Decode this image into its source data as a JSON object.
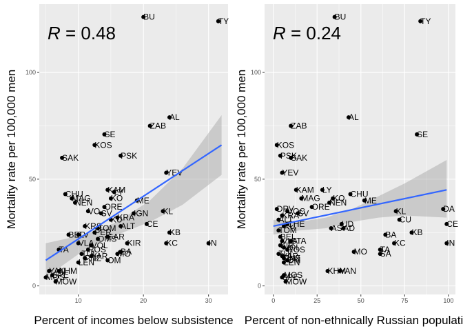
{
  "colors": {
    "panel": "#ebebeb",
    "grid": "#ffffff",
    "point": "#000000",
    "fit": "#3366ff",
    "ribbon": "#999999"
  },
  "chart_data": [
    {
      "type": "scatter",
      "r_var": "R",
      "r_value": "= 0.48",
      "xlabel": "Percent of incomes below subsistence",
      "ylabel": "Mortality rate per 100,000 men",
      "xlim": [
        4,
        33
      ],
      "ylim": [
        -4,
        132
      ],
      "xticks": [
        10,
        20,
        30
      ],
      "yticks": [
        0,
        50,
        100
      ],
      "fit": {
        "x": [
          5,
          32
        ],
        "y": [
          12,
          66
        ]
      },
      "ribbon": {
        "x": [
          5,
          11,
          16,
          21,
          26,
          32
        ],
        "upper": [
          20,
          24,
          30,
          40,
          55,
          80
        ],
        "lower": [
          4,
          17,
          24,
          30,
          38,
          52
        ]
      },
      "points": [
        {
          "label": "BU",
          "x": 20,
          "y": 126
        },
        {
          "label": "TY",
          "x": 31.5,
          "y": 124
        },
        {
          "label": "AL",
          "x": 24,
          "y": 79
        },
        {
          "label": "ZAB",
          "x": 21,
          "y": 75
        },
        {
          "label": "SE",
          "x": 14,
          "y": 71
        },
        {
          "label": "KOS",
          "x": 12.5,
          "y": 66
        },
        {
          "label": "PSK",
          "x": 16.5,
          "y": 61
        },
        {
          "label": "SAK",
          "x": 7.5,
          "y": 60
        },
        {
          "label": "YEV",
          "x": 23.5,
          "y": 53
        },
        {
          "label": "KAM",
          "x": 14.5,
          "y": 45
        },
        {
          "label": "CHU",
          "x": 8,
          "y": 43
        },
        {
          "label": "LY",
          "x": 15.5,
          "y": 44
        },
        {
          "label": "KO",
          "x": 15,
          "y": 41
        },
        {
          "label": "MAG",
          "x": 9,
          "y": 41
        },
        {
          "label": "ME",
          "x": 19,
          "y": 40
        },
        {
          "label": "NEN",
          "x": 9.5,
          "y": 39
        },
        {
          "label": "ORE",
          "x": 14,
          "y": 37
        },
        {
          "label": "VO",
          "x": 11.5,
          "y": 35
        },
        {
          "label": "SV",
          "x": 13.5,
          "y": 34
        },
        {
          "label": "KL",
          "x": 23,
          "y": 35
        },
        {
          "label": "IGN",
          "x": 18.5,
          "y": 34
        },
        {
          "label": "KRA",
          "x": 16,
          "y": 32
        },
        {
          "label": "KU",
          "x": 15,
          "y": 31
        },
        {
          "label": "CE",
          "x": 20.5,
          "y": 29
        },
        {
          "label": "ALT",
          "x": 16.5,
          "y": 28
        },
        {
          "label": "KRS",
          "x": 11,
          "y": 28
        },
        {
          "label": "TOM",
          "x": 13,
          "y": 27
        },
        {
          "label": "PER",
          "x": 12.5,
          "y": 25
        },
        {
          "label": "KB",
          "x": 24,
          "y": 25
        },
        {
          "label": "BEL",
          "x": 8.5,
          "y": 24
        },
        {
          "label": "TV",
          "x": 10,
          "y": 24
        },
        {
          "label": "SAR",
          "x": 14.5,
          "y": 23
        },
        {
          "label": "OMS",
          "x": 13,
          "y": 22
        },
        {
          "label": "KC",
          "x": 23.5,
          "y": 20
        },
        {
          "label": "IN",
          "x": 30,
          "y": 20
        },
        {
          "label": "VLA",
          "x": 10,
          "y": 20
        },
        {
          "label": "KIR",
          "x": 17.5,
          "y": 20
        },
        {
          "label": "VOL",
          "x": 12,
          "y": 19
        },
        {
          "label": "TA",
          "x": 7,
          "y": 17
        },
        {
          "label": "BA",
          "x": 16.5,
          "y": 16
        },
        {
          "label": "ROS",
          "x": 11.5,
          "y": 17
        },
        {
          "label": "MO",
          "x": 16,
          "y": 15
        },
        {
          "label": "TUL",
          "x": 10.5,
          "y": 15
        },
        {
          "label": "YAR",
          "x": 12,
          "y": 14
        },
        {
          "label": "PNZ",
          "x": 11,
          "y": 13
        },
        {
          "label": "OM",
          "x": 14.5,
          "y": 12
        },
        {
          "label": "LEN",
          "x": 10,
          "y": 11
        },
        {
          "label": "KHM",
          "x": 7,
          "y": 7
        },
        {
          "label": "YAN",
          "x": 5.5,
          "y": 7
        },
        {
          "label": "SPE",
          "x": 6,
          "y": 5
        },
        {
          "label": "MOS",
          "x": 5,
          "y": 4
        },
        {
          "label": "MOW",
          "x": 6.5,
          "y": 2
        }
      ]
    },
    {
      "type": "scatter",
      "r_var": "R",
      "r_value": "= 0.24",
      "xlabel": "Percent of non-ethnically Russian population",
      "ylabel": "Mortality rate per 100,000 men",
      "xlim": [
        -5,
        104
      ],
      "ylim": [
        -4,
        132
      ],
      "xticks": [
        0,
        25,
        50,
        75,
        100
      ],
      "yticks": [
        0,
        50,
        100
      ],
      "fit": {
        "x": [
          0,
          99
        ],
        "y": [
          28,
          45
        ]
      },
      "ribbon": {
        "x": [
          0,
          15,
          30,
          45,
          60,
          75,
          99
        ],
        "upper": [
          31,
          30,
          32,
          36,
          42,
          48,
          59
        ],
        "lower": [
          24,
          26,
          27,
          30,
          32,
          33,
          32
        ]
      },
      "points": [
        {
          "label": "BU",
          "x": 35,
          "y": 126
        },
        {
          "label": "TY",
          "x": 84,
          "y": 124
        },
        {
          "label": "AL",
          "x": 43,
          "y": 79
        },
        {
          "label": "ZAB",
          "x": 10,
          "y": 75
        },
        {
          "label": "SE",
          "x": 82,
          "y": 71
        },
        {
          "label": "KOS",
          "x": 2,
          "y": 66
        },
        {
          "label": "PSK",
          "x": 4,
          "y": 61
        },
        {
          "label": "SAK",
          "x": 10,
          "y": 60
        },
        {
          "label": "YEV",
          "x": 5,
          "y": 53
        },
        {
          "label": "KAM",
          "x": 13,
          "y": 45
        },
        {
          "label": "LY",
          "x": 28,
          "y": 45
        },
        {
          "label": "CHU",
          "x": 44,
          "y": 43
        },
        {
          "label": "MAG",
          "x": 16,
          "y": 41
        },
        {
          "label": "KO",
          "x": 34,
          "y": 41
        },
        {
          "label": "ME",
          "x": 52,
          "y": 40
        },
        {
          "label": "NEN",
          "x": 32,
          "y": 39
        },
        {
          "label": "ORE",
          "x": 22,
          "y": 37
        },
        {
          "label": "DA",
          "x": 97,
          "y": 36
        },
        {
          "label": "DRV",
          "x": 2,
          "y": 36
        },
        {
          "label": "VOC",
          "x": 8,
          "y": 35
        },
        {
          "label": "KL",
          "x": 70,
          "y": 35
        },
        {
          "label": "KRA",
          "x": 5,
          "y": 33
        },
        {
          "label": "SV",
          "x": 14,
          "y": 34
        },
        {
          "label": "CU",
          "x": 72,
          "y": 31
        },
        {
          "label": "ALT",
          "x": 3,
          "y": 31
        },
        {
          "label": "CE",
          "x": 99,
          "y": 29
        },
        {
          "label": "CHE",
          "x": 8,
          "y": 29
        },
        {
          "label": "UD",
          "x": 39,
          "y": 29
        },
        {
          "label": "KU",
          "x": 6,
          "y": 28
        },
        {
          "label": "AD",
          "x": 40,
          "y": 27
        },
        {
          "label": "AS",
          "x": 33,
          "y": 27
        },
        {
          "label": "TOM",
          "x": 3,
          "y": 26
        },
        {
          "label": "KB",
          "x": 79,
          "y": 25
        },
        {
          "label": "BA",
          "x": 64,
          "y": 24
        },
        {
          "label": "BEL",
          "x": 4,
          "y": 23
        },
        {
          "label": "VLA",
          "x": 5,
          "y": 21
        },
        {
          "label": "STA",
          "x": 10,
          "y": 21
        },
        {
          "label": "KC",
          "x": 69,
          "y": 20
        },
        {
          "label": "IN",
          "x": 99,
          "y": 20
        },
        {
          "label": "KIR",
          "x": 4,
          "y": 19
        },
        {
          "label": "VOL",
          "x": 6,
          "y": 18
        },
        {
          "label": "ROS",
          "x": 8,
          "y": 17
        },
        {
          "label": "TA",
          "x": 61,
          "y": 17
        },
        {
          "label": "MO",
          "x": 46,
          "y": 16
        },
        {
          "label": "SA",
          "x": 61,
          "y": 15
        },
        {
          "label": "TUL",
          "x": 3,
          "y": 15
        },
        {
          "label": "YAR",
          "x": 5,
          "y": 14
        },
        {
          "label": "PNZ",
          "x": 6,
          "y": 13
        },
        {
          "label": "OM",
          "x": 8,
          "y": 12
        },
        {
          "label": "LEN",
          "x": 6,
          "y": 11
        },
        {
          "label": "KHM",
          "x": 31,
          "y": 7
        },
        {
          "label": "YAN",
          "x": 38,
          "y": 7
        },
        {
          "label": "MOS",
          "x": 6,
          "y": 5
        },
        {
          "label": "SPE",
          "x": 5,
          "y": 4
        },
        {
          "label": "MOW",
          "x": 7,
          "y": 2
        }
      ]
    }
  ]
}
